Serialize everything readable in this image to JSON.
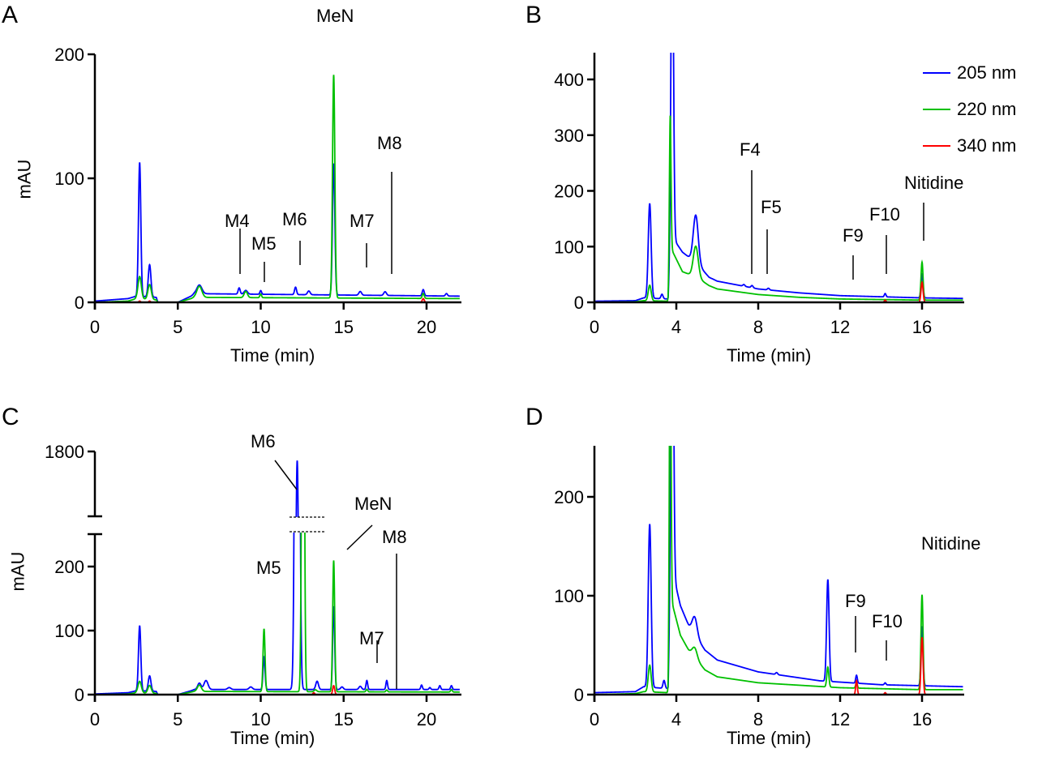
{
  "chart_data": [
    {
      "panel": "A",
      "type": "line",
      "xlabel": "Time (min)",
      "ylabel": "mAU",
      "xlim": [
        0,
        22
      ],
      "ylim": [
        0,
        200
      ],
      "xticks": [
        0,
        5,
        10,
        15,
        20
      ],
      "yticks": [
        0,
        100,
        200
      ],
      "series": [
        {
          "name": "205 nm",
          "color": "#0000ff",
          "baseline": [
            [
              0,
              1
            ],
            [
              2,
              3
            ],
            [
              2.5,
              5
            ],
            [
              3.7,
              4
            ],
            [
              3.8,
              0
            ],
            [
              5,
              0
            ],
            [
              5.8,
              5
            ],
            [
              6,
              7
            ],
            [
              22,
              5
            ]
          ],
          "peaks": [
            [
              2.7,
              108,
              0.07
            ],
            [
              3.3,
              26,
              0.08
            ],
            [
              6.3,
              7,
              0.15
            ],
            [
              8.7,
              5,
              0.06
            ],
            [
              9.1,
              3,
              0.1
            ],
            [
              10,
              3,
              0.05
            ],
            [
              12.1,
              6,
              0.06
            ],
            [
              12.9,
              3,
              0.08
            ],
            [
              14.4,
              106,
              0.07
            ],
            [
              16,
              3,
              0.08
            ],
            [
              17.5,
              3,
              0.08
            ],
            [
              19.8,
              5,
              0.06
            ],
            [
              21.2,
              2,
              0.06
            ]
          ]
        },
        {
          "name": "220 nm",
          "color": "#00c000",
          "baseline": [
            [
              0,
              0
            ],
            [
              2,
              1
            ],
            [
              2.5,
              3
            ],
            [
              3.7,
              2
            ],
            [
              3.8,
              0
            ],
            [
              5,
              0
            ],
            [
              5.8,
              3
            ],
            [
              6,
              4
            ],
            [
              22,
              3
            ]
          ],
          "peaks": [
            [
              2.7,
              18,
              0.1
            ],
            [
              3.3,
              12,
              0.1
            ],
            [
              6.3,
              9,
              0.15
            ],
            [
              9.1,
              5,
              0.1
            ],
            [
              10,
              3,
              0.05
            ],
            [
              14.4,
              180,
              0.07
            ],
            [
              19.8,
              4,
              0.06
            ]
          ]
        },
        {
          "name": "340 nm",
          "color": "#ff0000",
          "baseline": [
            [
              0,
              0
            ],
            [
              22,
              0
            ]
          ],
          "peaks": [
            [
              2.7,
              1,
              0.05
            ],
            [
              3.3,
              1,
              0.05
            ],
            [
              19.8,
              3,
              0.06
            ]
          ]
        }
      ],
      "annotations": [
        {
          "text": "M4",
          "x": 8.7
        },
        {
          "text": "M5",
          "x": 10
        },
        {
          "text": "M6",
          "x": 12.1
        },
        {
          "text": "MeN",
          "x": 14.4
        },
        {
          "text": "M7",
          "x": 16
        },
        {
          "text": "M8",
          "x": 17.5
        }
      ]
    },
    {
      "panel": "B",
      "type": "line",
      "xlabel": "Time (min)",
      "ylabel": "",
      "xlim": [
        0,
        18
      ],
      "ylim": [
        0,
        450
      ],
      "xticks": [
        0,
        4,
        8,
        12,
        16
      ],
      "yticks": [
        0,
        100,
        200,
        300,
        400
      ],
      "legend": {
        "position": "top-right",
        "entries": [
          "205 nm",
          "220 nm",
          "340 nm"
        ]
      },
      "series": [
        {
          "name": "205 nm",
          "color": "#0000ff",
          "baseline": [
            [
              0,
              2
            ],
            [
              2,
              3
            ],
            [
              2.4,
              8
            ],
            [
              3.6,
              6
            ],
            [
              3.75,
              120
            ],
            [
              4.3,
              90
            ],
            [
              5,
              70
            ],
            [
              5.6,
              45
            ],
            [
              6,
              38
            ],
            [
              8,
              24
            ],
            [
              10,
              17
            ],
            [
              12,
              12
            ],
            [
              16,
              8
            ],
            [
              18,
              7
            ]
          ],
          "peaks": [
            [
              2.7,
              170,
              0.07
            ],
            [
              3.3,
              8,
              0.05
            ],
            [
              3.8,
              600,
              0.06
            ],
            [
              4.95,
              85,
              0.12
            ],
            [
              7.3,
              3,
              0.05
            ],
            [
              7.7,
              4,
              0.05
            ],
            [
              8.5,
              3,
              0.05
            ],
            [
              14.2,
              6,
              0.04
            ],
            [
              16,
              42,
              0.05
            ]
          ]
        },
        {
          "name": "220 nm",
          "color": "#00c000",
          "baseline": [
            [
              0,
              0
            ],
            [
              2,
              1
            ],
            [
              2.4,
              3
            ],
            [
              3.6,
              2
            ],
            [
              3.7,
              100
            ],
            [
              4.3,
              55
            ],
            [
              5,
              45
            ],
            [
              5.6,
              30
            ],
            [
              6,
              24
            ],
            [
              8,
              14
            ],
            [
              10,
              9
            ],
            [
              12,
              6
            ],
            [
              16,
              4
            ],
            [
              18,
              4
            ]
          ],
          "peaks": [
            [
              2.7,
              28,
              0.07
            ],
            [
              3.7,
              235,
              0.04
            ],
            [
              4.95,
              55,
              0.12
            ],
            [
              16,
              68,
              0.05
            ]
          ]
        },
        {
          "name": "340 nm",
          "color": "#ff0000",
          "baseline": [
            [
              0,
              0
            ],
            [
              18,
              0
            ]
          ],
          "peaks": [
            [
              14.2,
              4,
              0.04
            ],
            [
              16,
              36,
              0.05
            ]
          ]
        }
      ],
      "annotations": [
        {
          "text": "F4",
          "x": 7.7
        },
        {
          "text": "F5",
          "x": 8.5
        },
        {
          "text": "F9",
          "x": 12.7
        },
        {
          "text": "F10",
          "x": 14.2
        },
        {
          "text": "Nitidine",
          "x": 16
        }
      ]
    },
    {
      "panel": "C",
      "type": "line",
      "xlabel": "Time (min)",
      "ylabel": "mAU",
      "xlim": [
        0,
        22
      ],
      "ylim": [
        0,
        1800
      ],
      "axis_break": [
        250,
        1500
      ],
      "xticks": [
        0,
        5,
        10,
        15,
        20
      ],
      "yticks": [
        0,
        100,
        200,
        1800
      ],
      "series": [
        {
          "name": "205 nm",
          "color": "#0000ff",
          "baseline": [
            [
              0,
              1
            ],
            [
              2,
              3
            ],
            [
              2.5,
              6
            ],
            [
              3.7,
              5
            ],
            [
              3.8,
              0
            ],
            [
              5,
              0
            ],
            [
              5.8,
              6
            ],
            [
              6,
              8
            ],
            [
              22,
              8
            ]
          ],
          "peaks": [
            [
              2.7,
              102,
              0.07
            ],
            [
              3.3,
              24,
              0.08
            ],
            [
              6.3,
              10,
              0.1
            ],
            [
              6.7,
              14,
              0.12
            ],
            [
              8.1,
              3,
              0.1
            ],
            [
              9.4,
              4,
              0.1
            ],
            [
              10.2,
              50,
              0.06
            ],
            [
              12.2,
              1750,
              0.1
            ],
            [
              13.4,
              13,
              0.08
            ],
            [
              14.4,
              130,
              0.06
            ],
            [
              14.9,
              4,
              0.08
            ],
            [
              16,
              5,
              0.08
            ],
            [
              16.4,
              14,
              0.05
            ],
            [
              17.6,
              14,
              0.05
            ],
            [
              19.7,
              7,
              0.05
            ],
            [
              20.2,
              3,
              0.05
            ],
            [
              20.8,
              6,
              0.05
            ],
            [
              21.5,
              6,
              0.05
            ]
          ]
        },
        {
          "name": "220 nm",
          "color": "#00c000",
          "baseline": [
            [
              0,
              0
            ],
            [
              2,
              1
            ],
            [
              2.5,
              3
            ],
            [
              3.7,
              2
            ],
            [
              3.8,
              0
            ],
            [
              5,
              0
            ],
            [
              5.8,
              4
            ],
            [
              6,
              5
            ],
            [
              22,
              4
            ]
          ],
          "peaks": [
            [
              2.7,
              18,
              0.1
            ],
            [
              3.3,
              12,
              0.1
            ],
            [
              6.3,
              10,
              0.12
            ],
            [
              10.2,
              98,
              0.06
            ],
            [
              12.55,
              900,
              0.07
            ],
            [
              13.3,
              3,
              0.08
            ],
            [
              14.4,
              205,
              0.06
            ],
            [
              16.4,
              4,
              0.05
            ],
            [
              17.6,
              3,
              0.05
            ],
            [
              21.5,
              4,
              0.05
            ]
          ]
        },
        {
          "name": "340 nm",
          "color": "#ff0000",
          "baseline": [
            [
              0,
              0
            ],
            [
              22,
              0
            ]
          ],
          "peaks": [
            [
              13.2,
              3,
              0.05
            ],
            [
              14.4,
              14,
              0.06
            ]
          ]
        }
      ],
      "annotations": [
        {
          "text": "M6",
          "x": 12.5
        },
        {
          "text": "MeN",
          "x": 14.4
        },
        {
          "text": "M5",
          "x": 10.2
        },
        {
          "text": "M7",
          "x": 16.4
        },
        {
          "text": "M8",
          "x": 17.6
        }
      ]
    },
    {
      "panel": "D",
      "type": "line",
      "xlabel": "Time (min)",
      "ylabel": "",
      "xlim": [
        0,
        18
      ],
      "ylim": [
        0,
        250
      ],
      "xticks": [
        0,
        4,
        8,
        12,
        16
      ],
      "yticks": [
        0,
        100,
        200
      ],
      "series": [
        {
          "name": "205 nm",
          "color": "#0000ff",
          "baseline": [
            [
              0,
              2
            ],
            [
              2,
              3
            ],
            [
              2.4,
              8
            ],
            [
              3.6,
              6
            ],
            [
              3.75,
              130
            ],
            [
              4.2,
              90
            ],
            [
              4.6,
              70
            ],
            [
              5.4,
              45
            ],
            [
              6,
              35
            ],
            [
              8,
              23
            ],
            [
              10,
              17
            ],
            [
              11,
              14
            ],
            [
              14,
              10
            ],
            [
              18,
              8
            ]
          ],
          "peaks": [
            [
              2.7,
              165,
              0.07
            ],
            [
              3.4,
              8,
              0.05
            ],
            [
              3.8,
              400,
              0.06
            ],
            [
              4.9,
              18,
              0.12
            ],
            [
              8.9,
              2,
              0.05
            ],
            [
              11.4,
              103,
              0.06
            ],
            [
              12.8,
              8,
              0.04
            ],
            [
              14.2,
              2,
              0.04
            ],
            [
              16,
              60,
              0.05
            ]
          ]
        },
        {
          "name": "220 nm",
          "color": "#00c000",
          "baseline": [
            [
              0,
              0
            ],
            [
              2,
              1
            ],
            [
              2.4,
              3
            ],
            [
              3.6,
              2
            ],
            [
              3.7,
              100
            ],
            [
              4.2,
              60
            ],
            [
              4.6,
              45
            ],
            [
              5.4,
              25
            ],
            [
              6,
              18
            ],
            [
              8,
              12
            ],
            [
              12,
              7
            ],
            [
              16,
              5
            ],
            [
              18,
              5
            ]
          ],
          "peaks": [
            [
              2.7,
              27,
              0.07
            ],
            [
              3.7,
              300,
              0.04
            ],
            [
              4.9,
              10,
              0.12
            ],
            [
              11.4,
              20,
              0.05
            ],
            [
              12.8,
              6,
              0.04
            ],
            [
              16,
              96,
              0.05
            ]
          ]
        },
        {
          "name": "340 nm",
          "color": "#ff0000",
          "baseline": [
            [
              0,
              0
            ],
            [
              18,
              0
            ]
          ],
          "peaks": [
            [
              12.8,
              14,
              0.04
            ],
            [
              14.2,
              2,
              0.04
            ],
            [
              16,
              58,
              0.05
            ]
          ]
        }
      ],
      "annotations": [
        {
          "text": "Nitidine",
          "x": 16
        },
        {
          "text": "F9",
          "x": 12.8
        },
        {
          "text": "F10",
          "x": 14.2
        }
      ]
    }
  ]
}
